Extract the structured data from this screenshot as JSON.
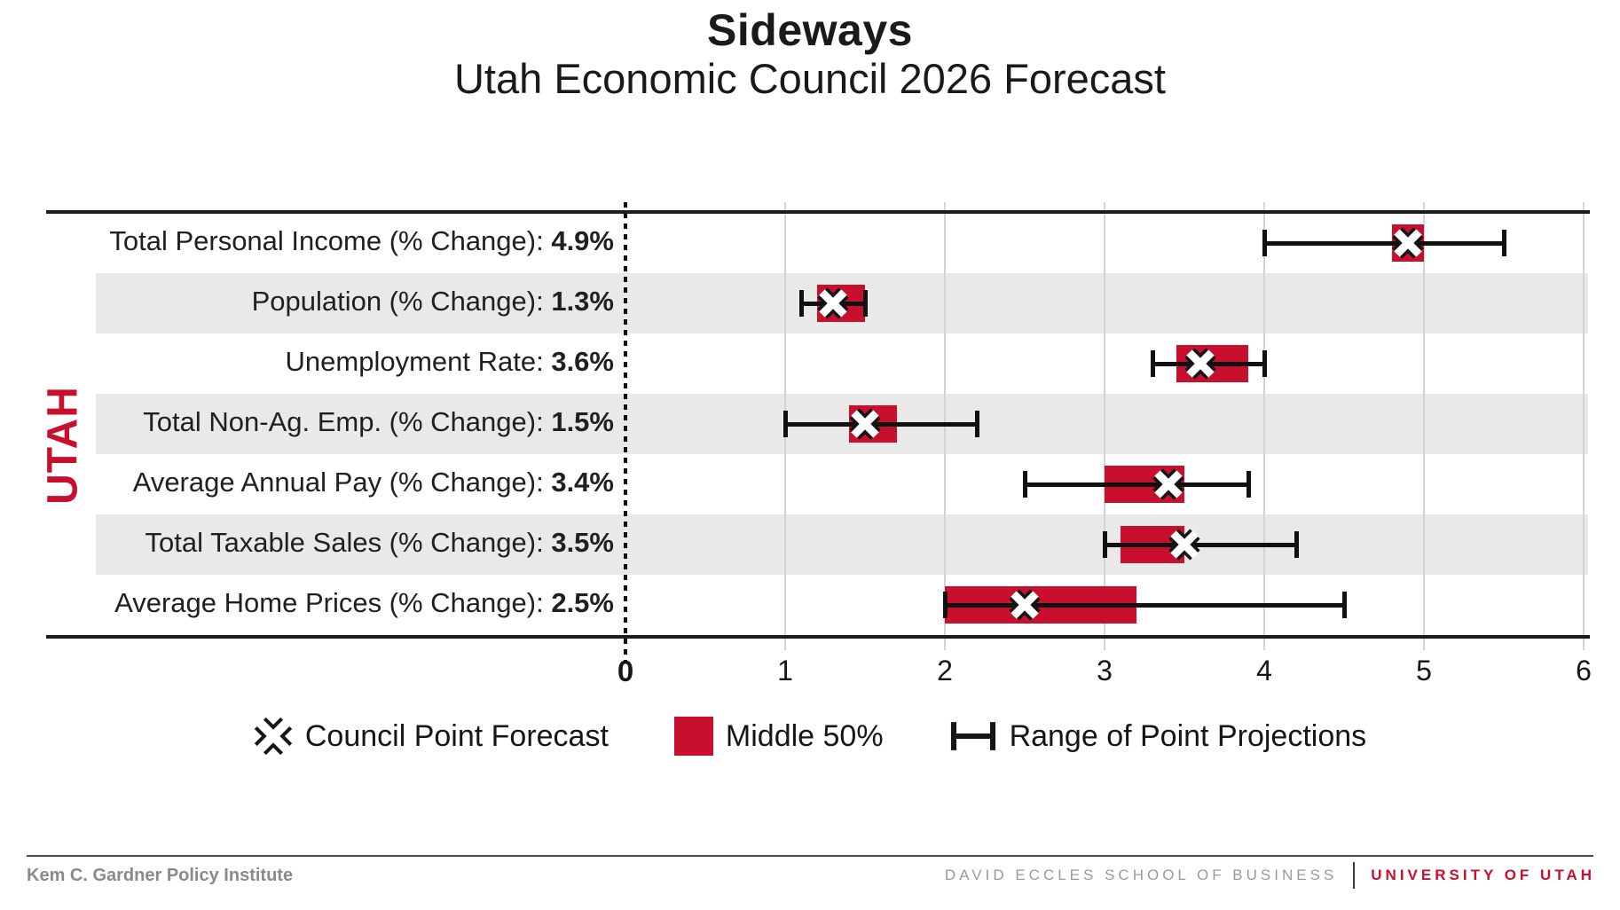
{
  "title": "Sideways",
  "subtitle": "Utah Economic Council 2026 Forecast",
  "region_label": "UTAH",
  "colors": {
    "accent_red": "#C8102E",
    "band_gray": "#E9E9E9",
    "grid_gray": "#D4D4D4",
    "ink": "#111111",
    "footer_gray": "#8A8A8A"
  },
  "chart_data": {
    "type": "box-whisker-horizontal",
    "title": "Utah Economic Council 2026 Forecast",
    "xlim": [
      0,
      6
    ],
    "x_ticks": [
      0,
      1,
      2,
      3,
      4,
      5,
      6
    ],
    "grid": true,
    "zero_reference_line": true,
    "series_meaning": {
      "point": "Council Point Forecast",
      "middle50": "Middle 50%",
      "range": "Range of Point Projections"
    },
    "rows": [
      {
        "label": "Total Personal Income (% Change):",
        "value_text": "4.9%",
        "point": 4.9,
        "middle50": [
          4.8,
          5.0
        ],
        "range": [
          4.0,
          5.5
        ]
      },
      {
        "label": "Population (% Change):",
        "value_text": "1.3%",
        "point": 1.3,
        "middle50": [
          1.2,
          1.5
        ],
        "range": [
          1.1,
          1.5
        ]
      },
      {
        "label": "Unemployment Rate:",
        "value_text": "3.6%",
        "point": 3.6,
        "middle50": [
          3.45,
          3.9
        ],
        "range": [
          3.3,
          4.0
        ]
      },
      {
        "label": "Total Non-Ag. Emp. (% Change):",
        "value_text": "1.5%",
        "point": 1.5,
        "middle50": [
          1.4,
          1.7
        ],
        "range": [
          1.0,
          2.2
        ]
      },
      {
        "label": "Average Annual Pay (% Change):",
        "value_text": "3.4%",
        "point": 3.4,
        "middle50": [
          3.0,
          3.5
        ],
        "range": [
          2.5,
          3.9
        ]
      },
      {
        "label": "Total Taxable Sales (% Change):",
        "value_text": "3.5%",
        "point": 3.5,
        "middle50": [
          3.1,
          3.5
        ],
        "range": [
          3.0,
          4.2
        ]
      },
      {
        "label": "Average Home Prices (% Change):",
        "value_text": "2.5%",
        "point": 2.5,
        "middle50": [
          2.0,
          3.2
        ],
        "range": [
          2.0,
          4.5
        ]
      }
    ]
  },
  "legend": {
    "items": [
      {
        "icon": "x-marker-icon",
        "label": "Council Point Forecast"
      },
      {
        "icon": "red-square-icon",
        "label": "Middle 50%"
      },
      {
        "icon": "range-whisker-icon",
        "label": "Range of Point Projections"
      }
    ]
  },
  "footer": {
    "left": "Kem C. Gardner Policy Institute",
    "school": "DAVID ECCLES SCHOOL OF BUSINESS",
    "university": "UNIVERSITY OF UTAH"
  }
}
